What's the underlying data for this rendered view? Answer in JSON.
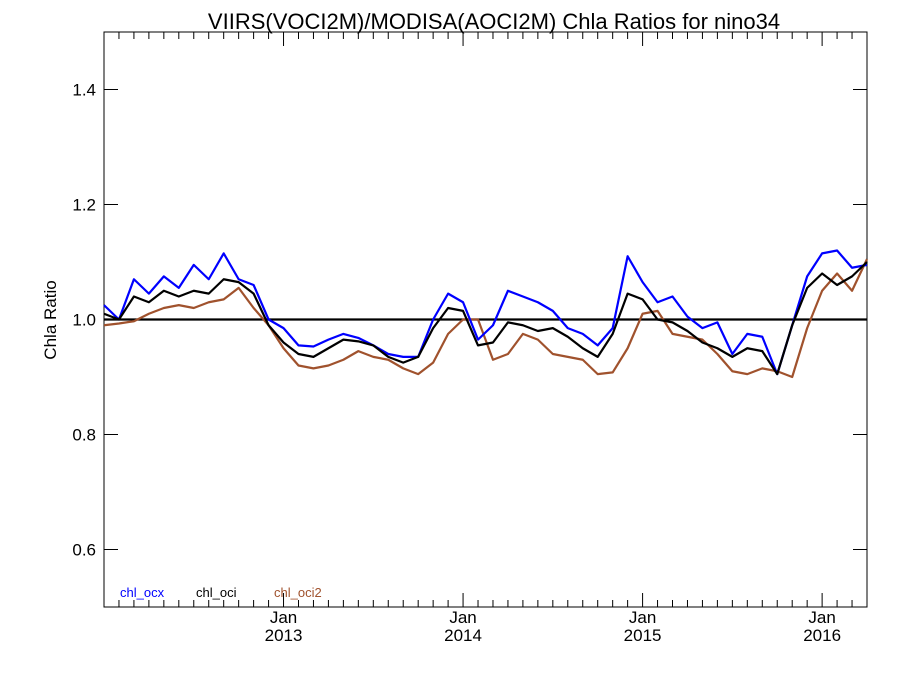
{
  "chart_data": {
    "type": "line",
    "title": "VIIRS(VOCI2M)/MODISA(AOCI2M)  Chla Ratios for nino34",
    "xlabel": "",
    "ylabel": "Chla Ratio",
    "ylim": [
      0.5,
      1.5
    ],
    "yticks": [
      "0.6",
      "0.8",
      "1.0",
      "1.2",
      "1.4"
    ],
    "x_month_range": [
      "2012-01",
      "2016-04"
    ],
    "xticks": [
      {
        "line1": "Jan",
        "line2": "2013",
        "date": "2013-01"
      },
      {
        "line1": "Jan",
        "line2": "2014",
        "date": "2014-01"
      },
      {
        "line1": "Jan",
        "line2": "2015",
        "date": "2015-01"
      },
      {
        "line1": "Jan",
        "line2": "2016",
        "date": "2016-01"
      }
    ],
    "reference_line": 1.0,
    "x": [
      "2012-01",
      "2012-02",
      "2012-03",
      "2012-04",
      "2012-05",
      "2012-06",
      "2012-07",
      "2012-08",
      "2012-09",
      "2012-10",
      "2012-11",
      "2012-12",
      "2013-01",
      "2013-02",
      "2013-03",
      "2013-04",
      "2013-05",
      "2013-06",
      "2013-07",
      "2013-08",
      "2013-09",
      "2013-10",
      "2013-11",
      "2013-12",
      "2014-01",
      "2014-02",
      "2014-03",
      "2014-04",
      "2014-05",
      "2014-06",
      "2014-07",
      "2014-08",
      "2014-09",
      "2014-10",
      "2014-11",
      "2014-12",
      "2015-01",
      "2015-02",
      "2015-03",
      "2015-04",
      "2015-05",
      "2015-06",
      "2015-07",
      "2015-08",
      "2015-09",
      "2015-10",
      "2015-11",
      "2015-12",
      "2016-01",
      "2016-02",
      "2016-03",
      "2016-04"
    ],
    "series": [
      {
        "name": "chl_ocx",
        "color": "#0000ff",
        "values": [
          1.025,
          1.0,
          1.07,
          1.045,
          1.075,
          1.055,
          1.095,
          1.07,
          1.115,
          1.07,
          1.06,
          1.0,
          0.985,
          0.955,
          0.953,
          0.965,
          0.975,
          0.968,
          0.955,
          0.94,
          0.935,
          0.935,
          1.0,
          1.045,
          1.03,
          0.965,
          0.99,
          1.05,
          1.04,
          1.03,
          1.015,
          0.985,
          0.975,
          0.955,
          0.985,
          1.11,
          1.065,
          1.03,
          1.04,
          1.005,
          0.985,
          0.995,
          0.94,
          0.975,
          0.97,
          0.905,
          0.99,
          1.075,
          1.115,
          1.12,
          1.09,
          1.095
        ]
      },
      {
        "name": "chl_oci",
        "color": "#000000",
        "values": [
          1.01,
          1.0,
          1.04,
          1.03,
          1.05,
          1.04,
          1.05,
          1.045,
          1.07,
          1.065,
          1.045,
          0.99,
          0.96,
          0.94,
          0.935,
          0.95,
          0.965,
          0.962,
          0.955,
          0.935,
          0.925,
          0.935,
          0.985,
          1.02,
          1.015,
          0.955,
          0.96,
          0.995,
          0.99,
          0.98,
          0.985,
          0.97,
          0.95,
          0.935,
          0.975,
          1.045,
          1.035,
          1.0,
          0.995,
          0.98,
          0.96,
          0.95,
          0.935,
          0.95,
          0.945,
          0.905,
          0.99,
          1.055,
          1.08,
          1.06,
          1.075,
          1.1
        ]
      },
      {
        "name": "chl_oci2",
        "color": "#a0522d",
        "values": [
          0.99,
          0.993,
          0.997,
          1.01,
          1.02,
          1.025,
          1.02,
          1.03,
          1.035,
          1.055,
          1.02,
          0.99,
          0.95,
          0.92,
          0.915,
          0.92,
          0.93,
          0.945,
          0.935,
          0.93,
          0.915,
          0.905,
          0.925,
          0.975,
          1.0,
          1.0,
          0.93,
          0.94,
          0.975,
          0.965,
          0.94,
          0.935,
          0.93,
          0.905,
          0.908,
          0.95,
          1.01,
          1.015,
          0.975,
          0.97,
          0.965,
          0.94,
          0.91,
          0.905,
          0.915,
          0.91,
          0.9,
          0.985,
          1.05,
          1.08,
          1.05,
          1.105
        ]
      }
    ],
    "grid": false,
    "legend_position": "bottom-left"
  }
}
